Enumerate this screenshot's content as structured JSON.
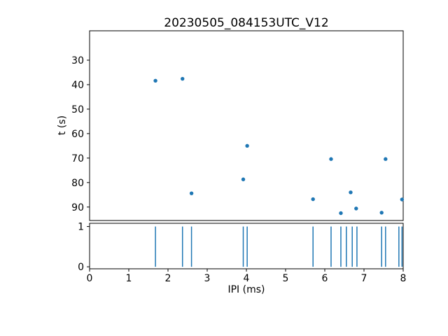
{
  "figure": {
    "background": "#ffffff",
    "text_color": "#000000",
    "accent": "#1f77b4"
  },
  "chart_data": [
    {
      "type": "scatter",
      "title": "20230505_084153UTC_V12",
      "xlabel": "",
      "ylabel": "t (s)",
      "xlim": [
        0,
        8
      ],
      "ylim": [
        18,
        95.5
      ],
      "y_inverted": true,
      "yticks": [
        30,
        40,
        50,
        60,
        70,
        80,
        90
      ],
      "grid": false,
      "legend": "none",
      "marker_color": "#1f77b4",
      "x": [
        1.68,
        2.37,
        2.6,
        3.92,
        4.02,
        5.7,
        6.16,
        6.41,
        6.66,
        6.8,
        7.45,
        7.55,
        7.97
      ],
      "y": [
        38.4,
        37.6,
        84.4,
        78.7,
        65.0,
        86.8,
        70.4,
        92.5,
        84.0,
        90.6,
        92.3,
        70.4,
        86.9
      ]
    },
    {
      "type": "bar",
      "style": "event-spikes",
      "title": "",
      "xlabel": "IPI (ms)",
      "ylabel": "",
      "xlim": [
        0,
        8
      ],
      "ylim": [
        -0.05,
        1.08
      ],
      "xticks": [
        0,
        1,
        2,
        3,
        4,
        5,
        6,
        7,
        8
      ],
      "yticks": [
        0,
        1
      ],
      "grid": false,
      "bar_color": "#1f77b4",
      "spike_height": 1,
      "x": [
        1.68,
        2.37,
        2.6,
        3.92,
        4.02,
        5.7,
        6.16,
        6.41,
        6.55,
        6.7,
        6.82,
        7.45,
        7.55,
        7.89,
        7.97
      ]
    }
  ]
}
